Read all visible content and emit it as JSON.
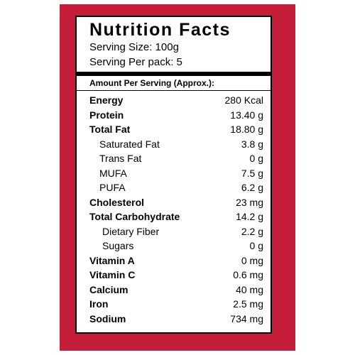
{
  "label": {
    "title": "Nutrition Facts",
    "serving_size": "Serving Size: 100g",
    "serving_per_pack": "Serving Per pack: 5",
    "amount_header": "Amount Per Serving (Approx.):"
  },
  "nutrients": [
    {
      "name": "Energy",
      "value": "280 Kcal"
    },
    {
      "name": "Protein",
      "value": "13.40 g"
    },
    {
      "name": "Total Fat",
      "value": "18.80 g"
    },
    {
      "name": "Saturated Fat",
      "value": "3.8 g"
    },
    {
      "name": "Trans Fat",
      "value": "0 g"
    },
    {
      "name": "MUFA",
      "value": "7.5 g"
    },
    {
      "name": "PUFA",
      "value": "6.2 g"
    },
    {
      "name": "Cholesterol",
      "value": "23 mg"
    },
    {
      "name": "Total Carbohydrate",
      "value": "14.2 g"
    },
    {
      "name": "Dietary Fiber",
      "value": "2.2 g"
    },
    {
      "name": "Sugars",
      "value": "0 g"
    },
    {
      "name": "Vitamin A",
      "value": "0 mg"
    },
    {
      "name": "Vitamin C",
      "value": "0.6 mg"
    },
    {
      "name": "Calcium",
      "value": "40 mg"
    },
    {
      "name": "Iron",
      "value": "2.5 mg"
    },
    {
      "name": "Sodium",
      "value": "734 mg"
    }
  ],
  "colors": {
    "frame": "#c41e3a",
    "panel": "#ffffff",
    "text": "#000000"
  }
}
